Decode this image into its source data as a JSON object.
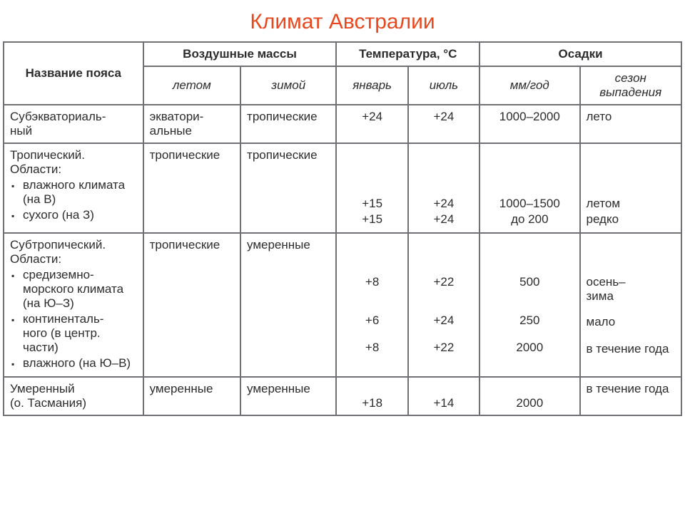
{
  "title": "Климат Австралии",
  "headers": {
    "belt": "Название пояса",
    "air": "Воздушные массы",
    "temp": "Температура, °C",
    "precip": "Осадки",
    "summer": "летом",
    "winter": "зимой",
    "jan": "январь",
    "jul": "июль",
    "mm": "мм/год",
    "season": "сезон выпадения"
  },
  "r1": {
    "name": "Субэкваториаль-\nный",
    "summer": "экватори-\nальные",
    "winter": "тропические",
    "jan": "+24",
    "jul": "+24",
    "mm": "1000–2000",
    "season": "лето"
  },
  "r2": {
    "name_head": "Тропический. Области:",
    "b1": "влажного климата (на В)",
    "b2": "сухого (на З)",
    "summer": "тропические",
    "winter": "тропические",
    "jan1": "+15",
    "jan2": "+15",
    "jul1": "+24",
    "jul2": "+24",
    "mm1": "1000–1500",
    "mm2": "до 200",
    "s1": "летом",
    "s2": "редко"
  },
  "r3": {
    "name_head": "Субтропический. Области:",
    "b1": "средиземно-\nморского климата (на Ю–З)",
    "b2": "континенталь-\nного (в центр. части)",
    "b3": "влажного (на Ю–В)",
    "summer": "тропические",
    "winter": "умеренные",
    "jan1": "+8",
    "jan2": "+6",
    "jan3": "+8",
    "jul1": "+22",
    "jul2": "+24",
    "jul3": "+22",
    "mm1": "500",
    "mm2": "250",
    "mm3": "2000",
    "s1": "осень–\nзима",
    "s2": "мало",
    "s3": "в течение года"
  },
  "r4": {
    "name": "Умеренный\n(о. Тасмания)",
    "summer": "умеренные",
    "winter": "умеренные",
    "jan": "+18",
    "jul": "+14",
    "mm": "2000",
    "season": "в течение года"
  }
}
